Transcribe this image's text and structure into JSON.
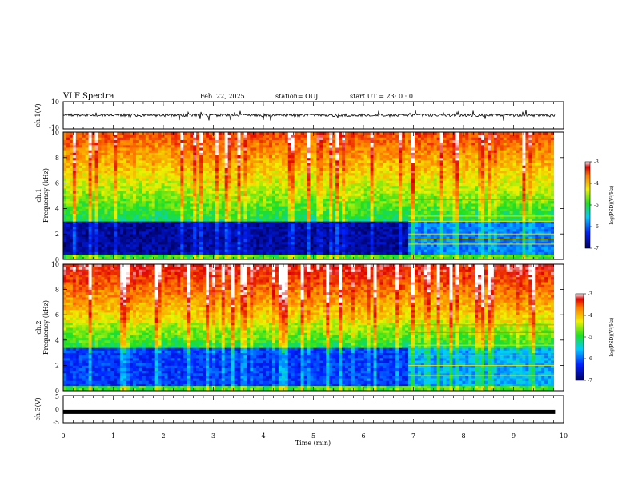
{
  "header": {
    "title": "VLF Spectra",
    "date": "Feb. 22, 2025",
    "station": "station= OUJ",
    "start": "start  UT =   23: 0  : 0"
  },
  "chart_data": [
    {
      "type": "line",
      "panel": "ch1-waveform",
      "ylabel": "ch.1(V)",
      "ylim": [
        -10,
        10
      ],
      "yticks": [
        "10",
        "-10"
      ],
      "xlim": [
        0,
        10
      ],
      "trace_level": 0,
      "trace_color": "#000000"
    },
    {
      "type": "heatmap",
      "panel": "ch1-spectrogram",
      "ylabel_line1": "ch.1",
      "ylabel_line2": "Frequency (kHz)",
      "ylim": [
        0,
        10
      ],
      "yticks": [
        "0",
        "2",
        "4",
        "6",
        "8",
        "10"
      ],
      "xlim": [
        0,
        9.8
      ],
      "transition_min": 6.9,
      "colorbar": {
        "label": "log(PSD)(V²/Hz)",
        "range": [
          -7,
          -3
        ],
        "ticks": [
          "-3",
          "-4",
          "-5",
          "-6",
          "-7"
        ]
      }
    },
    {
      "type": "heatmap",
      "panel": "ch2-spectrogram",
      "ylabel_line1": "ch.2",
      "ylabel_line2": "Frequency (kHz)",
      "ylim": [
        0,
        10
      ],
      "yticks": [
        "0",
        "2",
        "4",
        "6",
        "8",
        "10"
      ],
      "xlim": [
        0,
        9.8
      ],
      "transition_min": 6.9,
      "colorbar": {
        "label": "log(PSD)(V²/Hz)",
        "range": [
          -7,
          -3
        ],
        "ticks": [
          "-3",
          "-4",
          "-5",
          "-6",
          "-7"
        ]
      }
    },
    {
      "type": "line",
      "panel": "ch3-waveform",
      "ylabel": "ch.3(V)",
      "ylim": [
        -5,
        5
      ],
      "yticks": [
        "5",
        "0",
        "-5"
      ],
      "xlim": [
        0,
        10
      ],
      "trace_level": -1,
      "trace_color": "#000000"
    }
  ],
  "xaxis": {
    "label": "Time (min)",
    "range": [
      0,
      10
    ],
    "ticks": [
      "0",
      "1",
      "2",
      "3",
      "4",
      "5",
      "6",
      "7",
      "8",
      "9",
      "10"
    ]
  },
  "colors": {
    "deep_blue": "#00007a",
    "blue": "#0030ff",
    "cyan": "#00d8ff",
    "green": "#22dd22",
    "yellow": "#f0f000",
    "orange": "#ff8800",
    "red": "#dd0000"
  }
}
